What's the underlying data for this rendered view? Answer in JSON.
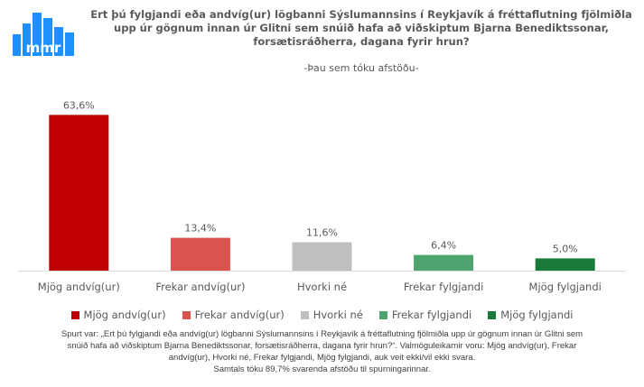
{
  "logo": {
    "text": "mmr",
    "color": "#1e90ff"
  },
  "chart_data": {
    "type": "bar",
    "title": "Ert þú fylgjandi eða andvíg(ur) lögbanni Sýslumannsins í Reykjavík á fréttaflutning fjölmiðla upp úr gögnum innan úr Glitni sem snúið hafa að viðskiptum Bjarna Benediktssonar, forsætisráðherra, dagana fyrir hrun?",
    "subtitle": "-Þau sem tóku afstöðu-",
    "categories": [
      "Mjög andvíg(ur)",
      "Frekar andvíg(ur)",
      "Hvorki né",
      "Frekar fylgjandi",
      "Mjög fylgjandi"
    ],
    "values": [
      63.6,
      13.4,
      11.6,
      6.4,
      5.0
    ],
    "value_labels": [
      "63,6%",
      "13,4%",
      "11,6%",
      "6,4%",
      "5,0%"
    ],
    "colors": [
      "#c00000",
      "#d9534f",
      "#bfbfbf",
      "#4ea46e",
      "#1a7a3a"
    ],
    "ylim": [
      0,
      70
    ],
    "grid": false,
    "legend_position": "bottom"
  },
  "footnote": {
    "line1": "Spurt var: „Ert þú fylgjandi eða andvíg(ur) lögbanni Sýslumannsins í Reykjavík á fréttaflutning fjölmiðla upp úr gögnum innan úr Glitni sem",
    "line2": "snúið hafa að viðskiptum Bjarna Benediktssonar, forsætisráðherra, dagana fyrir hrun?“. Valmöguleikarnir voru: Mjög andvíg(ur), Frekar",
    "line3": "andvíg(ur), Hvorki né, Frekar fylgjandi, Mjög fylgjandi, auk veit ekki/vil ekki svara.",
    "line4": "Samtals tóku 89,7% svarenda afstöðu til spurningarinnar."
  }
}
